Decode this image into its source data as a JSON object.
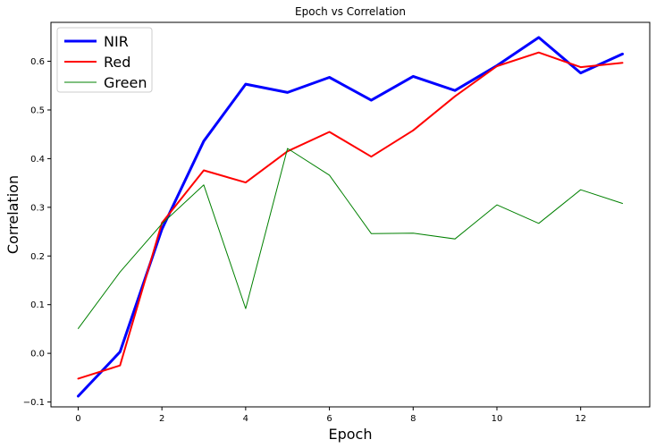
{
  "chart_data": {
    "type": "line",
    "title": "Epoch vs Correlation",
    "xlabel": "Epoch",
    "ylabel": "Correlation",
    "xlim": [
      -0.65,
      13.65
    ],
    "ylim": [
      -0.11,
      0.68
    ],
    "xticks": [
      0,
      2,
      4,
      6,
      8,
      10,
      12
    ],
    "yticks": [
      -0.1,
      0.0,
      0.1,
      0.2,
      0.3,
      0.4,
      0.5,
      0.6
    ],
    "xtick_labels": [
      "0",
      "2",
      "4",
      "6",
      "8",
      "10",
      "12"
    ],
    "ytick_labels": [
      "−0.1",
      "0.0",
      "0.1",
      "0.2",
      "0.3",
      "0.4",
      "0.5",
      "0.6"
    ],
    "grid": false,
    "legend_position": "top-left",
    "x": [
      0,
      1,
      2,
      3,
      4,
      5,
      6,
      7,
      8,
      9,
      10,
      11,
      12,
      13
    ],
    "series": [
      {
        "name": "NIR",
        "color": "#0000ff",
        "line_weight": "thick",
        "values": [
          -0.088,
          0.003,
          0.255,
          0.436,
          0.553,
          0.536,
          0.567,
          0.52,
          0.569,
          0.54,
          0.591,
          0.649,
          0.576,
          0.615
        ]
      },
      {
        "name": "Red",
        "color": "#ff0000",
        "line_weight": "medium",
        "values": [
          -0.052,
          -0.025,
          0.268,
          0.376,
          0.351,
          0.415,
          0.455,
          0.404,
          0.458,
          0.528,
          0.59,
          0.618,
          0.588,
          0.597
        ]
      },
      {
        "name": "Green",
        "color": "#008000",
        "line_weight": "thin",
        "values": [
          0.051,
          0.167,
          0.266,
          0.346,
          0.092,
          0.421,
          0.366,
          0.246,
          0.247,
          0.235,
          0.305,
          0.267,
          0.336,
          0.308
        ]
      }
    ]
  }
}
